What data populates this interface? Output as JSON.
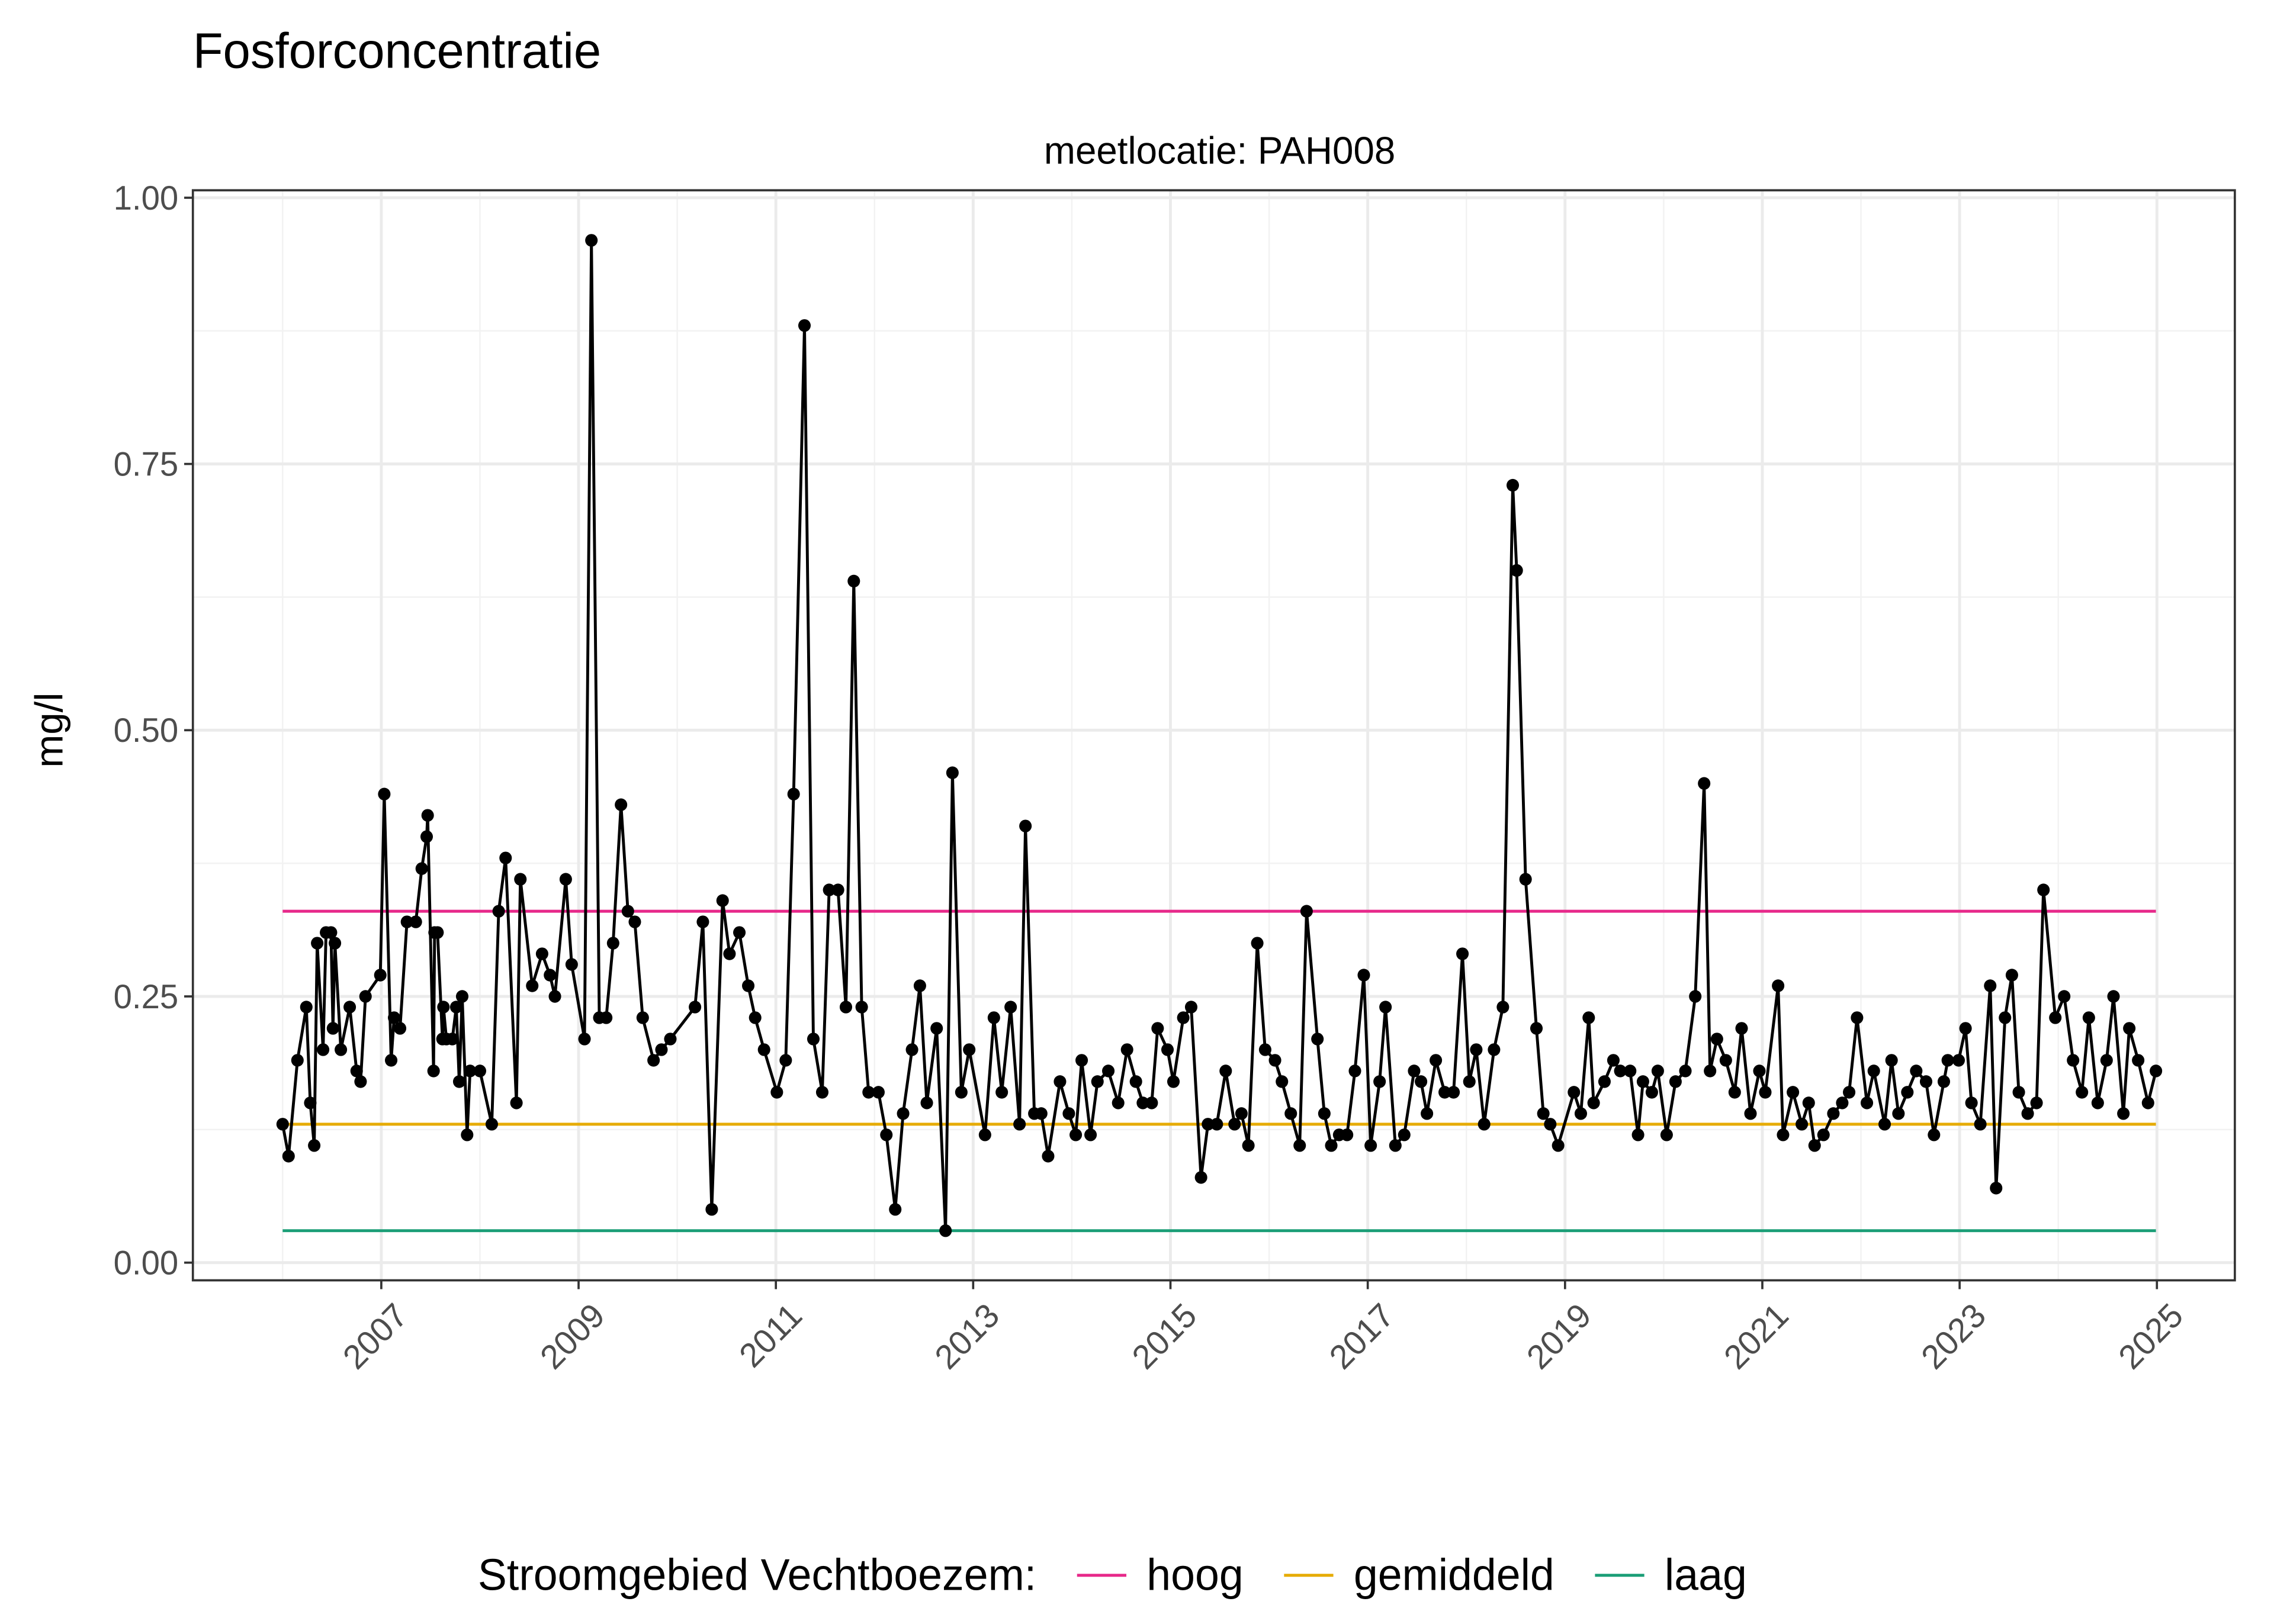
{
  "chart_data": {
    "type": "line",
    "title": "Fosforconcentratie",
    "facet_label": "meetlocatie: PAH008",
    "y_label": "mg/l",
    "legend_title": "Stroomgebied Vechtboezem:",
    "legend_position": "bottom",
    "grid": true,
    "xlim": [
      2005.09,
      2025.79
    ],
    "ylim": [
      -0.0166,
      1.007
    ],
    "xticks": [
      2007,
      2009,
      2011,
      2013,
      2015,
      2017,
      2019,
      2021,
      2023,
      2025
    ],
    "yticks": [
      {
        "value": 0,
        "label": "0.00"
      },
      {
        "value": 0.25,
        "label": "0.25"
      },
      {
        "value": 0.5,
        "label": "0.50"
      },
      {
        "value": 0.75,
        "label": "0.75"
      },
      {
        "value": 1,
        "label": "1.00"
      }
    ],
    "series": [
      {
        "color": "#000000",
        "x": [
          2006.0,
          2006.06,
          2006.15,
          2006.24,
          2006.28,
          2006.32,
          2006.35,
          2006.41,
          2006.44,
          2006.49,
          2006.51,
          2006.53,
          2006.59,
          2006.68,
          2006.75,
          2006.79,
          2006.84,
          2006.99,
          2007.03,
          2007.1,
          2007.13,
          2007.19,
          2007.26,
          2007.35,
          2007.41,
          2007.46,
          2007.47,
          2007.53,
          2007.54,
          2007.57,
          2007.62,
          2007.63,
          2007.66,
          2007.72,
          2007.76,
          2007.79,
          2007.82,
          2007.87,
          2007.9,
          2008.0,
          2008.12,
          2008.19,
          2008.26,
          2008.37,
          2008.41,
          2008.53,
          2008.63,
          2008.71,
          2008.76,
          2008.87,
          2008.93,
          2009.06,
          2009.13,
          2009.21,
          2009.28,
          2009.35,
          2009.43,
          2009.5,
          2009.57,
          2009.65,
          2009.76,
          2009.84,
          2009.93,
          2010.18,
          2010.26,
          2010.35,
          2010.46,
          2010.53,
          2010.63,
          2010.72,
          2010.79,
          2010.88,
          2011.01,
          2011.1,
          2011.18,
          2011.29,
          2011.38,
          2011.47,
          2011.54,
          2011.63,
          2011.71,
          2011.79,
          2011.87,
          2011.94,
          2012.04,
          2012.12,
          2012.21,
          2012.29,
          2012.38,
          2012.46,
          2012.53,
          2012.63,
          2012.72,
          2012.79,
          2012.88,
          2012.96,
          2013.12,
          2013.21,
          2013.29,
          2013.38,
          2013.47,
          2013.53,
          2013.62,
          2013.69,
          2013.76,
          2013.88,
          2013.97,
          2014.04,
          2014.1,
          2014.19,
          2014.26,
          2014.37,
          2014.47,
          2014.56,
          2014.65,
          2014.72,
          2014.81,
          2014.87,
          2014.97,
          2015.03,
          2015.13,
          2015.21,
          2015.31,
          2015.38,
          2015.47,
          2015.56,
          2015.65,
          2015.72,
          2015.79,
          2015.88,
          2015.96,
          2016.06,
          2016.13,
          2016.22,
          2016.31,
          2016.38,
          2016.49,
          2016.56,
          2016.63,
          2016.71,
          2016.79,
          2016.87,
          2016.96,
          2017.03,
          2017.12,
          2017.18,
          2017.28,
          2017.37,
          2017.47,
          2017.54,
          2017.6,
          2017.69,
          2017.78,
          2017.87,
          2017.96,
          2018.03,
          2018.1,
          2018.18,
          2018.28,
          2018.37,
          2018.47,
          2018.51,
          2018.6,
          2018.71,
          2018.78,
          2018.85,
          2018.93,
          2019.09,
          2019.16,
          2019.24,
          2019.29,
          2019.4,
          2019.49,
          2019.56,
          2019.66,
          2019.74,
          2019.79,
          2019.88,
          2019.94,
          2020.03,
          2020.12,
          2020.22,
          2020.32,
          2020.41,
          2020.47,
          2020.54,
          2020.63,
          2020.72,
          2020.79,
          2020.88,
          2020.97,
          2021.03,
          2021.16,
          2021.21,
          2021.31,
          2021.4,
          2021.47,
          2021.53,
          2021.62,
          2021.72,
          2021.81,
          2021.88,
          2021.96,
          2022.06,
          2022.13,
          2022.24,
          2022.31,
          2022.38,
          2022.47,
          2022.56,
          2022.66,
          2022.74,
          2022.84,
          2022.88,
          2022.99,
          2023.06,
          2023.12,
          2023.21,
          2023.31,
          2023.37,
          2023.46,
          2023.53,
          2023.6,
          2023.69,
          2023.78,
          2023.85,
          2023.97,
          2024.06,
          2024.15,
          2024.24,
          2024.31,
          2024.4,
          2024.49,
          2024.56,
          2024.66,
          2024.72,
          2024.81,
          2024.91,
          2024.99
        ],
        "values": [
          0.13,
          0.1,
          0.19,
          0.24,
          0.15,
          0.11,
          0.3,
          0.2,
          0.31,
          0.31,
          0.22,
          0.3,
          0.2,
          0.24,
          0.18,
          0.17,
          0.25,
          0.27,
          0.44,
          0.19,
          0.23,
          0.22,
          0.32,
          0.32,
          0.37,
          0.4,
          0.42,
          0.18,
          0.31,
          0.31,
          0.21,
          0.24,
          0.21,
          0.21,
          0.24,
          0.17,
          0.25,
          0.12,
          0.18,
          0.18,
          0.13,
          0.33,
          0.38,
          0.15,
          0.36,
          0.26,
          0.29,
          0.27,
          0.25,
          0.36,
          0.28,
          0.21,
          0.96,
          0.23,
          0.23,
          0.3,
          0.43,
          0.33,
          0.32,
          0.23,
          0.19,
          0.2,
          0.21,
          0.24,
          0.32,
          0.05,
          0.34,
          0.29,
          0.31,
          0.26,
          0.23,
          0.2,
          0.16,
          0.19,
          0.44,
          0.88,
          0.21,
          0.16,
          0.35,
          0.35,
          0.24,
          0.64,
          0.24,
          0.16,
          0.16,
          0.12,
          0.05,
          0.14,
          0.2,
          0.26,
          0.15,
          0.22,
          0.03,
          0.46,
          0.16,
          0.2,
          0.12,
          0.23,
          0.16,
          0.24,
          0.13,
          0.41,
          0.14,
          0.14,
          0.1,
          0.17,
          0.14,
          0.12,
          0.19,
          0.12,
          0.17,
          0.18,
          0.15,
          0.2,
          0.17,
          0.15,
          0.15,
          0.22,
          0.2,
          0.17,
          0.23,
          0.24,
          0.08,
          0.13,
          0.13,
          0.18,
          0.13,
          0.14,
          0.11,
          0.3,
          0.2,
          0.19,
          0.17,
          0.14,
          0.11,
          0.33,
          0.21,
          0.14,
          0.11,
          0.12,
          0.12,
          0.18,
          0.27,
          0.11,
          0.17,
          0.24,
          0.11,
          0.12,
          0.18,
          0.17,
          0.14,
          0.19,
          0.16,
          0.16,
          0.29,
          0.17,
          0.2,
          0.13,
          0.2,
          0.24,
          0.73,
          0.65,
          0.36,
          0.22,
          0.14,
          0.13,
          0.11,
          0.16,
          0.14,
          0.23,
          0.15,
          0.17,
          0.19,
          0.18,
          0.18,
          0.12,
          0.17,
          0.16,
          0.18,
          0.12,
          0.17,
          0.18,
          0.25,
          0.45,
          0.18,
          0.21,
          0.19,
          0.16,
          0.22,
          0.14,
          0.18,
          0.16,
          0.26,
          0.12,
          0.16,
          0.13,
          0.15,
          0.11,
          0.12,
          0.14,
          0.15,
          0.16,
          0.23,
          0.15,
          0.18,
          0.13,
          0.19,
          0.14,
          0.16,
          0.18,
          0.17,
          0.12,
          0.17,
          0.19,
          0.19,
          0.22,
          0.15,
          0.13,
          0.26,
          0.07,
          0.23,
          0.27,
          0.16,
          0.14,
          0.15,
          0.35,
          0.23,
          0.25,
          0.19,
          0.16,
          0.23,
          0.15,
          0.19,
          0.25,
          0.14,
          0.22,
          0.19,
          0.15,
          0.18
        ]
      }
    ],
    "reference_lines": [
      {
        "name": "hoog",
        "color": "#e7298a",
        "value": 0.33
      },
      {
        "name": "gemiddeld",
        "color": "#e6ab02",
        "value": 0.13
      },
      {
        "name": "laag",
        "color": "#1b9e77",
        "value": 0.03
      }
    ]
  }
}
